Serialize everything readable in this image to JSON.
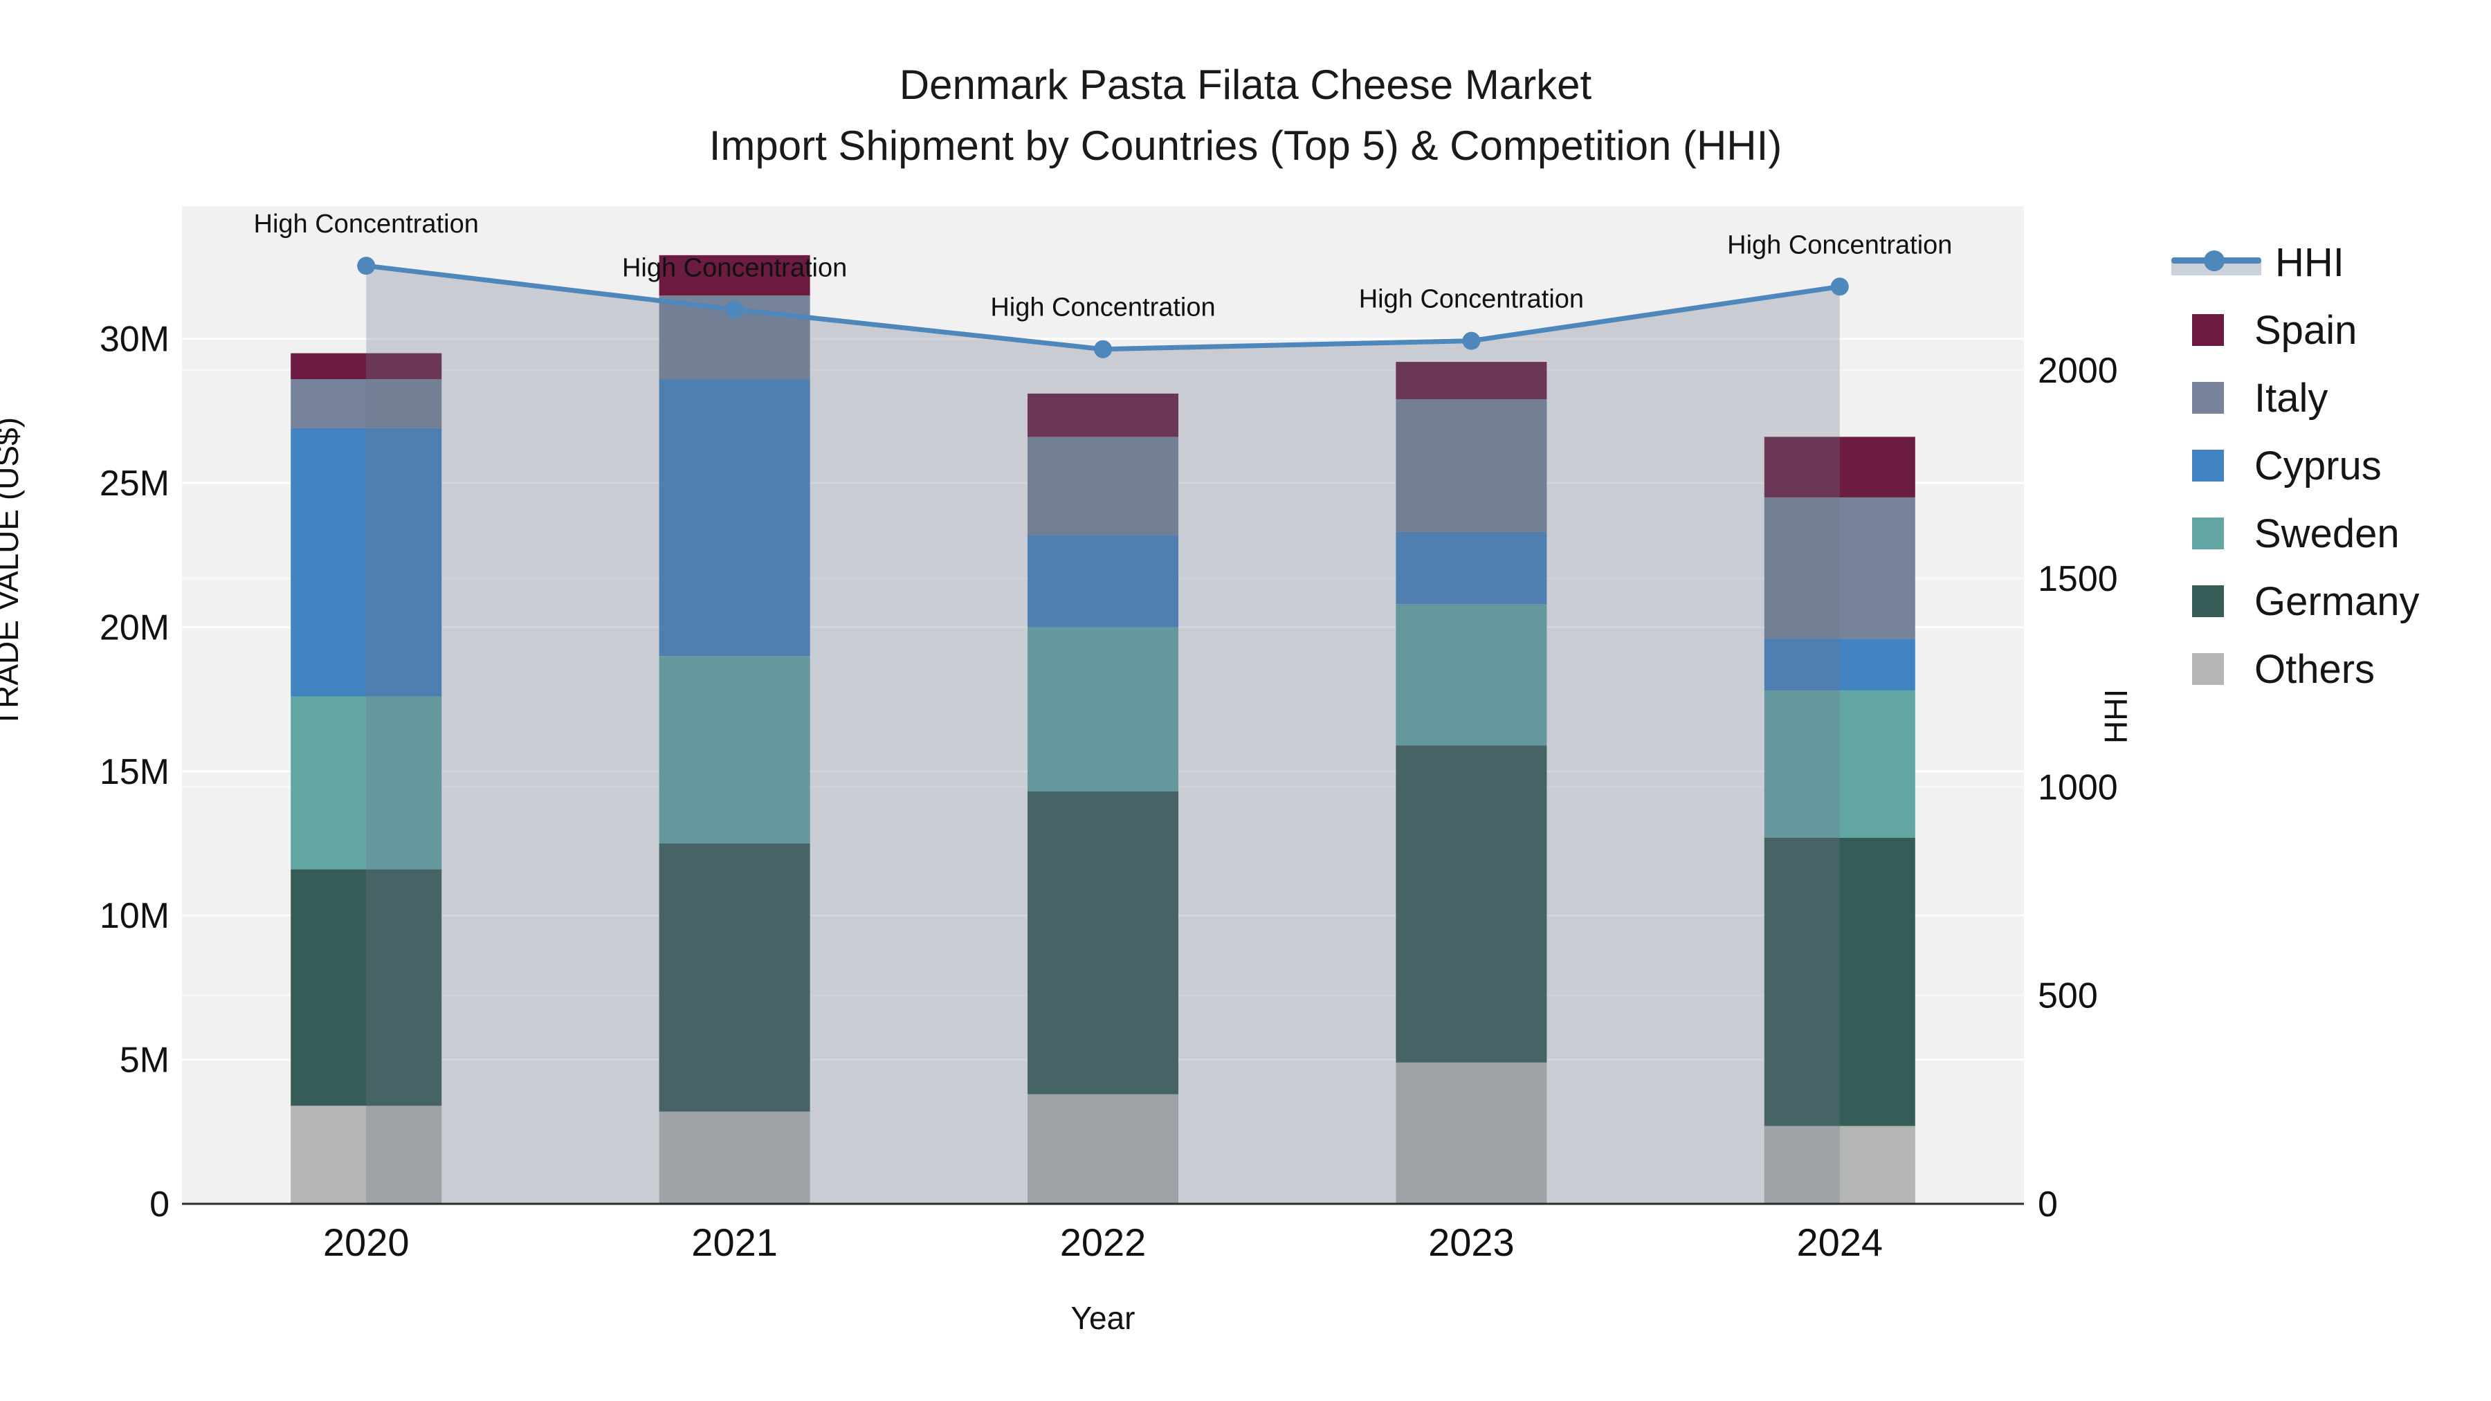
{
  "title": {
    "line1": "Denmark Pasta Filata Cheese Market",
    "line2": "Import Shipment by Countries (Top 5) & Competition (HHI)"
  },
  "chart_data": {
    "type": "bar",
    "subtype": "stacked-bars-with-line-area-overlay",
    "unit": "USD millions (left axis), HHI index (right axis)",
    "categories": [
      "2020",
      "2021",
      "2022",
      "2023",
      "2024"
    ],
    "series": [
      {
        "name": "Others",
        "color": "#b3b6b5",
        "values": [
          3.4,
          3.2,
          3.8,
          4.9,
          2.7
        ]
      },
      {
        "name": "Germany",
        "color": "#365c57",
        "values": [
          8.2,
          9.3,
          10.5,
          11.0,
          10.0
        ]
      },
      {
        "name": "Sweden",
        "color": "#62a6a4",
        "values": [
          6.0,
          6.5,
          5.7,
          4.9,
          5.1
        ]
      },
      {
        "name": "Cyprus",
        "color": "#4283c1",
        "values": [
          9.3,
          9.6,
          3.2,
          2.5,
          1.8
        ]
      },
      {
        "name": "Italy",
        "color": "#76839a",
        "values": [
          1.7,
          2.9,
          3.4,
          4.6,
          4.9
        ]
      },
      {
        "name": "Spain",
        "color": "#6b1c40",
        "values": [
          0.9,
          1.4,
          1.5,
          1.3,
          2.1
        ]
      }
    ],
    "bar_totals": [
      29.5,
      32.9,
      28.1,
      29.2,
      26.6
    ],
    "line_series": {
      "name": "HHI",
      "color": "#4d87bb",
      "area_fill": "rgba(110,120,140,0.30)",
      "values": [
        2250,
        2145,
        2050,
        2070,
        2200
      ]
    },
    "annotations": [
      "High Concentration",
      "High Concentration",
      "High Concentration",
      "High Concentration",
      "High Concentration"
    ],
    "annotation_color": "#2a2a2a",
    "xlabel": "Year",
    "ylabel_left": "TRADE VALUE (US$)",
    "ylabel_right": "HHI",
    "y_left_ticks": [
      {
        "value": 0,
        "label": "0"
      },
      {
        "value": 5,
        "label": "5M"
      },
      {
        "value": 10,
        "label": "10M"
      },
      {
        "value": 15,
        "label": "15M"
      },
      {
        "value": 20,
        "label": "20M"
      },
      {
        "value": 25,
        "label": "25M"
      },
      {
        "value": 30,
        "label": "30M"
      }
    ],
    "y_right_ticks": [
      {
        "value": 0,
        "label": "0"
      },
      {
        "value": 500,
        "label": "500"
      },
      {
        "value": 1000,
        "label": "1000"
      },
      {
        "value": 1500,
        "label": "1500"
      },
      {
        "value": 2000,
        "label": "2000"
      }
    ],
    "ylim_left": [
      0,
      34.6
    ],
    "ylim_right": [
      0,
      2393
    ],
    "legend_order": [
      "HHI",
      "Spain",
      "Italy",
      "Cyprus",
      "Sweden",
      "Germany",
      "Others"
    ],
    "plot_background": "#f1f1f1",
    "gridline_color": "#ffffff"
  }
}
